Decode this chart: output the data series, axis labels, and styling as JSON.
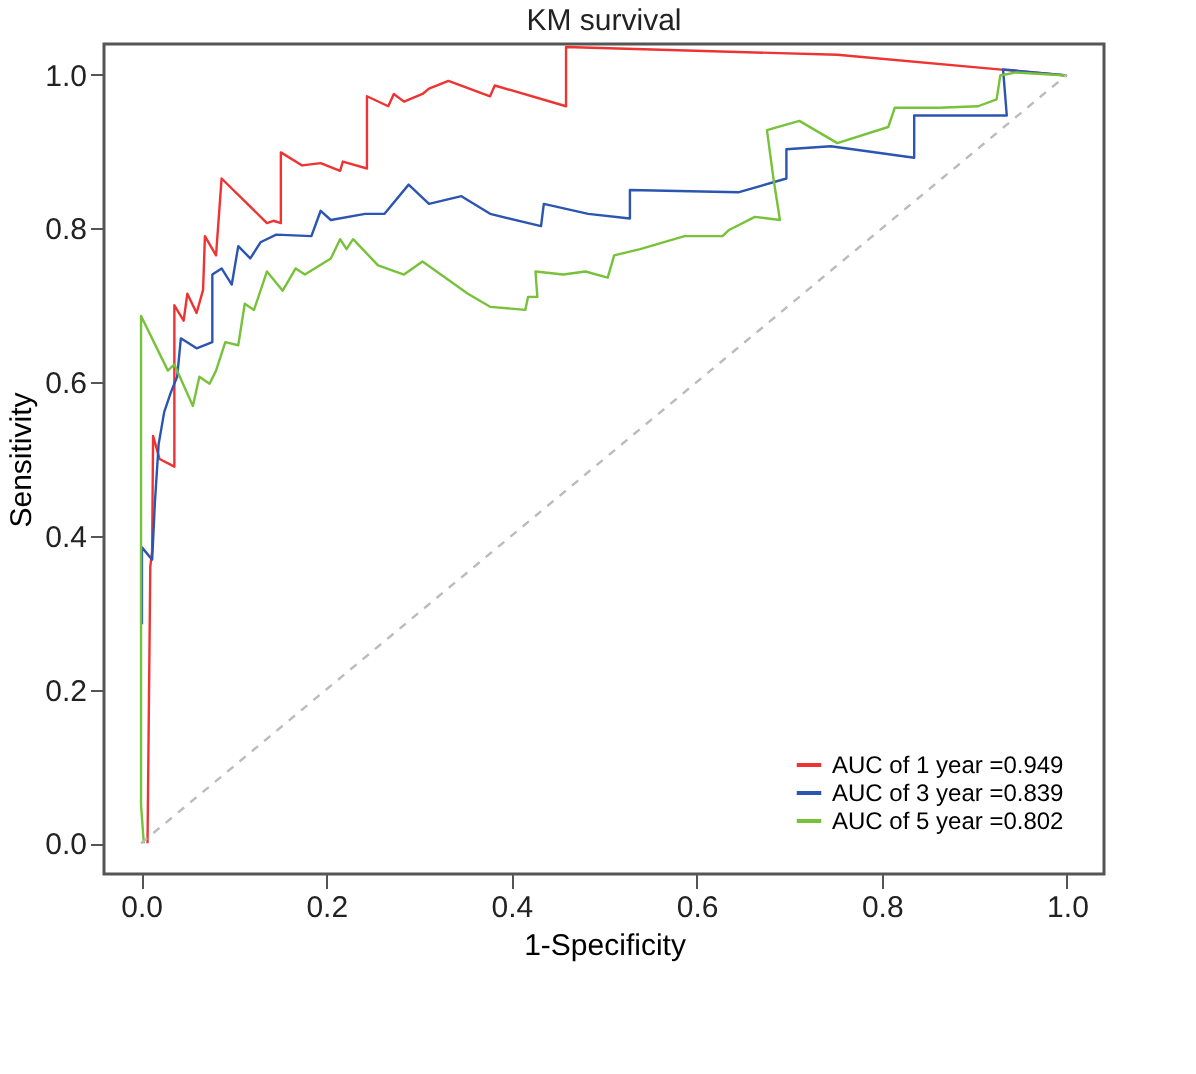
{
  "chart_data": {
    "type": "line",
    "title": "KM survival",
    "xlabel": "1-Specificity",
    "ylabel": "Sensitivity",
    "xlim": [
      -0.04,
      1.04
    ],
    "ylim": [
      -0.04,
      1.04
    ],
    "xticks": [
      {
        "value": 0,
        "label": "0.0"
      },
      0.2,
      0.4,
      0.6,
      0.8,
      {
        "value": 1,
        "label": "1.0"
      }
    ],
    "yticks": [
      {
        "value": 0,
        "label": "0.0"
      },
      0.2,
      0.4,
      0.6,
      0.8,
      {
        "value": 1,
        "label": "1.0"
      }
    ],
    "grid": false,
    "legend": "bottom right",
    "marker": "none",
    "line_style": "solid",
    "series": [
      {
        "name": "AUC of 1 year =0.949",
        "color": "#ee3333",
        "x": [
          0.007,
          0.01,
          0.012,
          0.013,
          0.02,
          0.036,
          0.036,
          0.046,
          0.05,
          0.06,
          0.067,
          0.069,
          0.081,
          0.087,
          0.136,
          0.143,
          0.151,
          0.151,
          0.174,
          0.194,
          0.215,
          0.218,
          0.244,
          0.244,
          0.267,
          0.273,
          0.284,
          0.304,
          0.311,
          0.332,
          0.377,
          0.382,
          0.459,
          0.459,
          0.752,
          1.0
        ],
        "values": [
          0.0,
          0.36,
          0.38,
          0.53,
          0.5,
          0.49,
          0.7,
          0.68,
          0.715,
          0.69,
          0.72,
          0.79,
          0.765,
          0.865,
          0.807,
          0.81,
          0.807,
          0.899,
          0.882,
          0.885,
          0.875,
          0.887,
          0.878,
          0.972,
          0.959,
          0.975,
          0.965,
          0.975,
          0.982,
          0.992,
          0.972,
          0.986,
          0.959,
          1.036,
          1.026,
          0.999
        ]
      },
      {
        "name": "AUC of 3 year =0.839",
        "color": "#2b55b0",
        "x": [
          0.001,
          0.001,
          0.012,
          0.015,
          0.019,
          0.025,
          0.032,
          0.039,
          0.043,
          0.06,
          0.077,
          0.077,
          0.087,
          0.098,
          0.105,
          0.118,
          0.129,
          0.146,
          0.184,
          0.194,
          0.205,
          0.242,
          0.263,
          0.289,
          0.311,
          0.346,
          0.377,
          0.432,
          0.435,
          0.483,
          0.528,
          0.528,
          0.645,
          0.697,
          0.697,
          0.745,
          0.835,
          0.835,
          0.935,
          0.931,
          1.0
        ],
        "values": [
          0.285,
          0.385,
          0.369,
          0.444,
          0.519,
          0.561,
          0.586,
          0.607,
          0.657,
          0.644,
          0.652,
          0.74,
          0.748,
          0.727,
          0.777,
          0.761,
          0.782,
          0.792,
          0.79,
          0.823,
          0.811,
          0.819,
          0.819,
          0.857,
          0.832,
          0.842,
          0.819,
          0.803,
          0.832,
          0.819,
          0.813,
          0.85,
          0.847,
          0.865,
          0.903,
          0.907,
          0.892,
          0.947,
          0.947,
          1.007,
          0.999
        ]
      },
      {
        "name": "AUC of 5 year =0.802",
        "color": "#77c23a",
        "x": [
          0.003,
          0.0,
          0.0,
          0.029,
          0.036,
          0.056,
          0.063,
          0.074,
          0.081,
          0.091,
          0.105,
          0.112,
          0.122,
          0.136,
          0.153,
          0.167,
          0.177,
          0.205,
          0.215,
          0.222,
          0.229,
          0.256,
          0.284,
          0.304,
          0.353,
          0.377,
          0.415,
          0.418,
          0.428,
          0.426,
          0.456,
          0.48,
          0.504,
          0.511,
          0.539,
          0.587,
          0.628,
          0.635,
          0.663,
          0.69,
          0.683,
          0.676,
          0.711,
          0.752,
          0.807,
          0.814,
          0.862,
          0.904,
          0.924,
          0.928,
          0.945,
          1.0
        ],
        "values": [
          0.0,
          0.05,
          0.686,
          0.615,
          0.623,
          0.569,
          0.607,
          0.598,
          0.615,
          0.652,
          0.648,
          0.702,
          0.694,
          0.744,
          0.719,
          0.748,
          0.74,
          0.761,
          0.786,
          0.773,
          0.786,
          0.752,
          0.74,
          0.757,
          0.715,
          0.698,
          0.694,
          0.711,
          0.711,
          0.744,
          0.74,
          0.744,
          0.736,
          0.765,
          0.773,
          0.79,
          0.79,
          0.798,
          0.815,
          0.811,
          0.865,
          0.928,
          0.94,
          0.911,
          0.932,
          0.957,
          0.957,
          0.959,
          0.968,
          0.999,
          1.003,
          0.999
        ]
      },
      {
        "color": "#bbbbbb",
        "line_style": "dashed",
        "x": [
          0.0,
          1.0
        ],
        "values": [
          0.0,
          1.0
        ]
      }
    ]
  }
}
